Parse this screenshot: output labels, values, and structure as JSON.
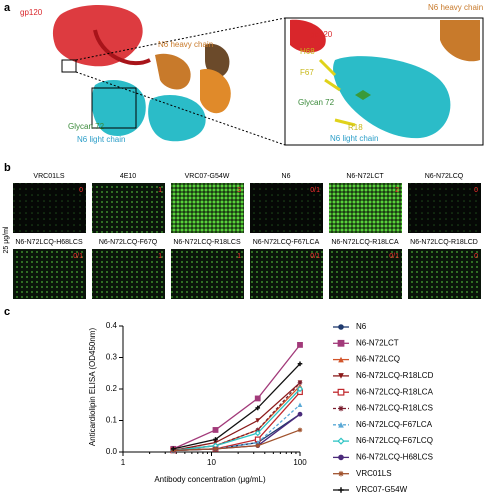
{
  "panel_a": {
    "label": "a",
    "main": {
      "gp120": "gp120",
      "heavy": "N6 heavy chain",
      "glycan": "Glycan 72",
      "light": "N6 light chain"
    },
    "inset": {
      "heavy": "N6 heavy chain",
      "gp120": "gp120",
      "h68": "H68",
      "f67": "F67",
      "glycan": "Glycan 72",
      "r18": "R18",
      "light": "N6 light chain"
    }
  },
  "panel_b": {
    "label": "b",
    "side_label": "25 μg/ml",
    "wells": [
      {
        "name": "VRC01LS",
        "score": "0"
      },
      {
        "name": "4E10",
        "score": "1"
      },
      {
        "name": "VRC07-G54W",
        "score": "3"
      },
      {
        "name": "N6",
        "score": "0/1"
      },
      {
        "name": "N6-N72LCT",
        "score": "2"
      },
      {
        "name": "N6-N72LCQ",
        "score": "0"
      },
      {
        "name": "N6-N72LCQ-H68LCS",
        "score": "0/1"
      },
      {
        "name": "N6-N72LCQ-F67Q",
        "score": "1"
      },
      {
        "name": "N6-N72LCQ-R18LCS",
        "score": "1"
      },
      {
        "name": "N6-N72LCQ-F67LCA",
        "score": "0/1"
      },
      {
        "name": "N6-N72LCQ-R18LCA",
        "score": "0/1"
      },
      {
        "name": "N6-N72LCQ-R18LCD",
        "score": "0"
      }
    ]
  },
  "chart_data": {
    "type": "line",
    "panel_label": "c",
    "x_label": "Antibody concentration (μg/mL)",
    "y_label": "Anticardiolipin ELISA (OD450nm)",
    "xscale": "log",
    "xlim": [
      1,
      100
    ],
    "xticks": [
      1,
      10,
      100
    ],
    "ylim": [
      0,
      0.4
    ],
    "yticks": [
      {
        "value": 0,
        "label": "0.0"
      },
      {
        "value": 0.1,
        "label": "0.1"
      },
      {
        "value": 0.2,
        "label": "0.2"
      },
      {
        "value": 0.3,
        "label": "0.3"
      },
      {
        "value": 0.4,
        "label": "0.4"
      }
    ],
    "x": [
      3.7,
      11.1,
      33.3,
      100
    ],
    "series": [
      {
        "name": "N6",
        "color": "#1f3a6e",
        "marker": "circle",
        "values": [
          0.005,
          0.01,
          0.03,
          0.12
        ]
      },
      {
        "name": "N6-N72LCT",
        "color": "#a23a7a",
        "marker": "square",
        "values": [
          0.01,
          0.07,
          0.17,
          0.34
        ]
      },
      {
        "name": "N6-N72LCQ",
        "color": "#d2552a",
        "marker": "triangle",
        "values": [
          0.005,
          0.02,
          0.07,
          0.21
        ]
      },
      {
        "name": "N6-N72LCQ-R18LCD",
        "color": "#8b1a1a",
        "marker": "triangle-down",
        "values": [
          0.005,
          0.03,
          0.1,
          0.22
        ]
      },
      {
        "name": "N6-N72LCQ-R18LCA",
        "color": "#c0282d",
        "marker": "square-open",
        "values": [
          0.005,
          0.01,
          0.04,
          0.19
        ]
      },
      {
        "name": "N6-N72LCQ-R18LCS",
        "color": "#7a1d2e",
        "marker": "star",
        "dash": true,
        "values": [
          0.005,
          0.02,
          0.07,
          0.22
        ]
      },
      {
        "name": "N6-N72LCQ-F67LCA",
        "color": "#5aa9d6",
        "marker": "triangle",
        "dash": true,
        "values": [
          0.005,
          0.01,
          0.03,
          0.15
        ]
      },
      {
        "name": "N6-N72LCQ-F67LCQ",
        "color": "#2ec4c4",
        "marker": "diamond",
        "values": [
          0.005,
          0.02,
          0.06,
          0.2
        ]
      },
      {
        "name": "N6-N72LCQ-H68LCS",
        "color": "#4b2a7b",
        "marker": "circle",
        "values": [
          0.005,
          0.01,
          0.02,
          0.12
        ]
      },
      {
        "name": "VRC01LS",
        "color": "#a0522d",
        "marker": "star",
        "values": [
          0.005,
          0.01,
          0.02,
          0.07
        ]
      },
      {
        "name": "VRC07-G54W",
        "color": "#111111",
        "marker": "plus",
        "values": [
          0.01,
          0.04,
          0.14,
          0.28
        ]
      }
    ]
  }
}
